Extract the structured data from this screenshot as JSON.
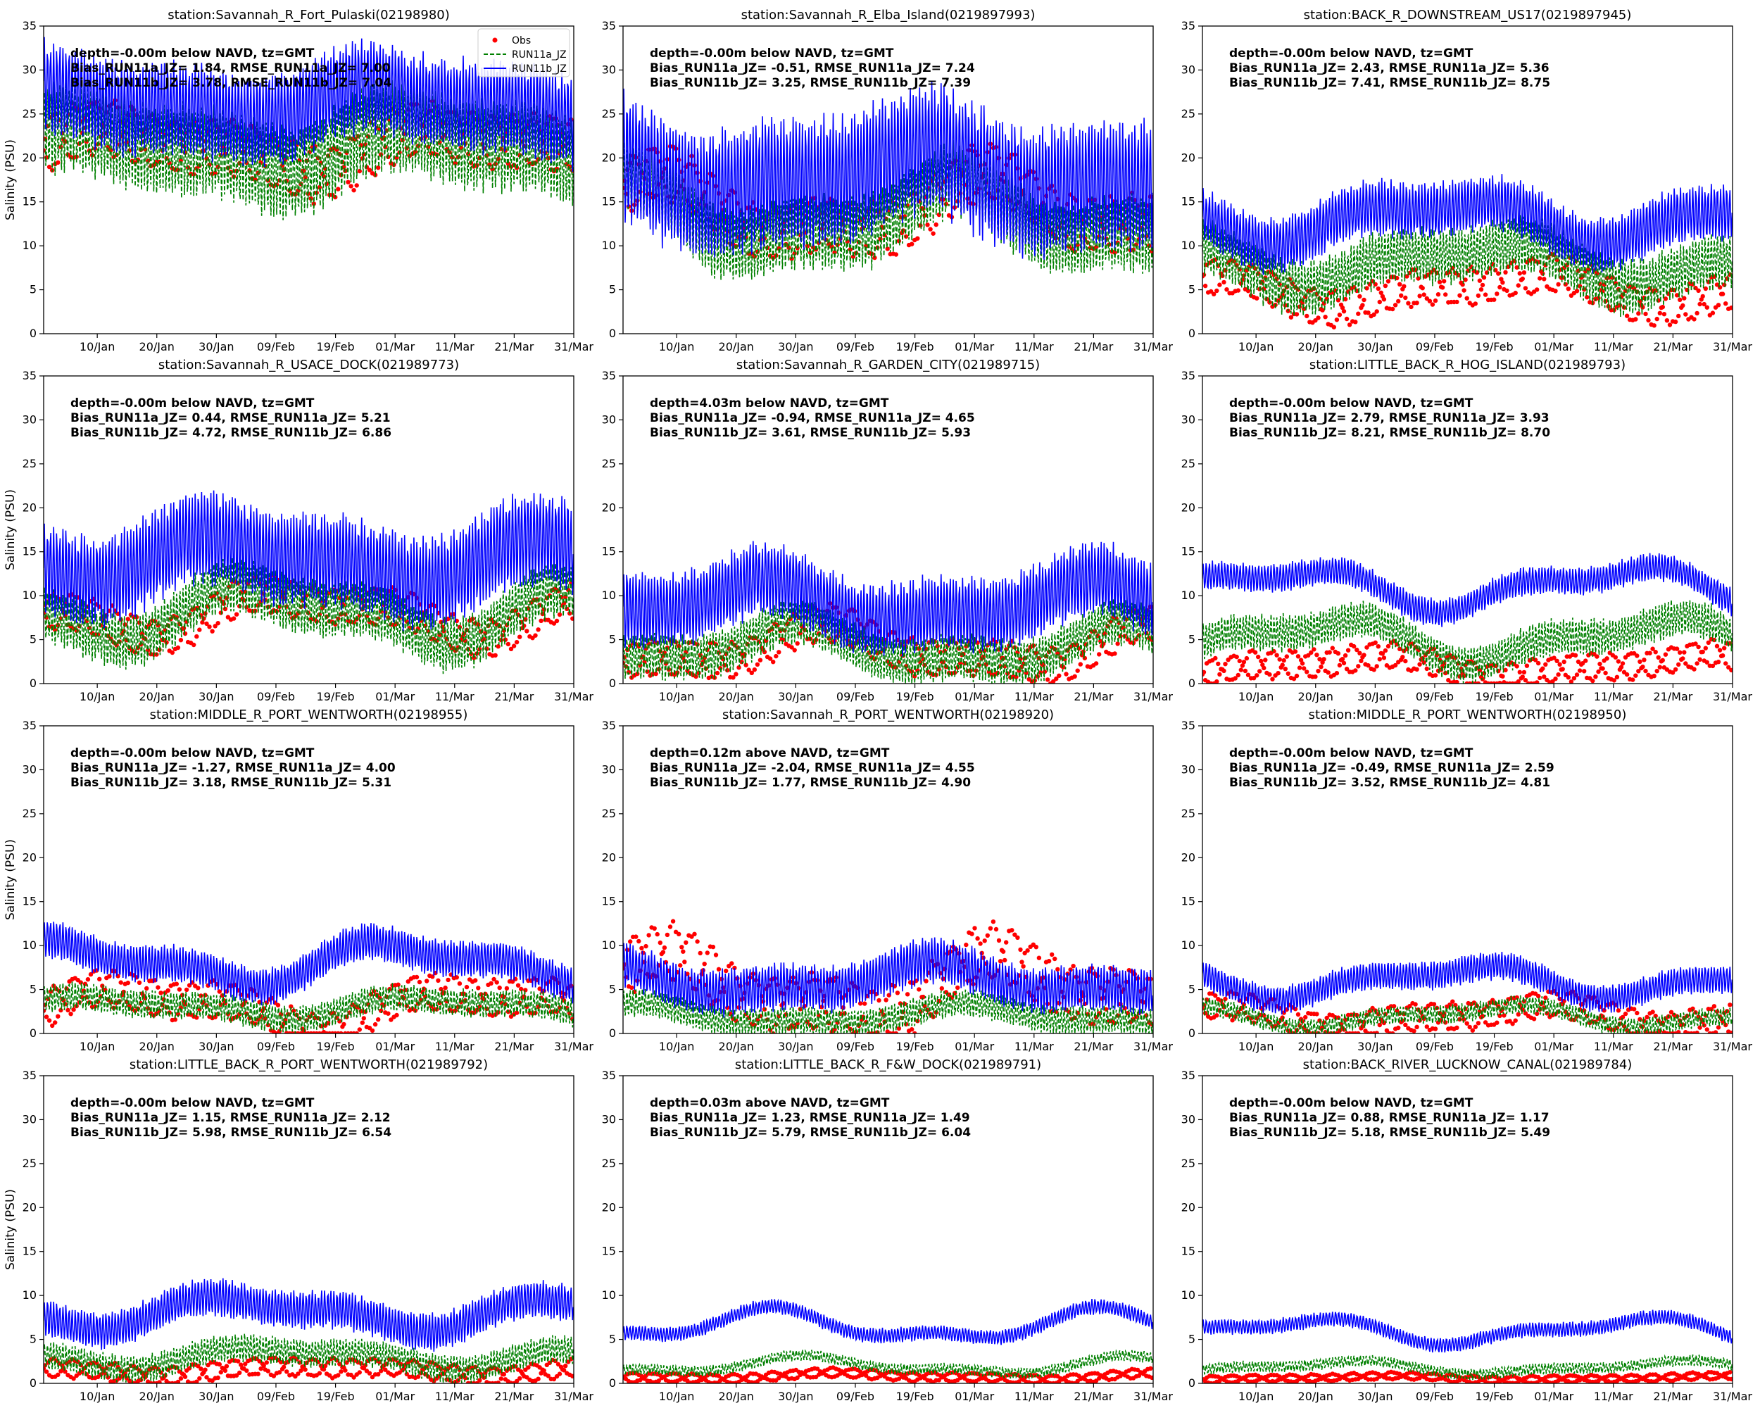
{
  "figure": {
    "ylabel": "Salinity (PSU)",
    "legend": {
      "placement": "top-right of first panel",
      "entries": [
        "Obs",
        "RUN11a_JZ",
        "RUN11b_JZ"
      ]
    },
    "colors": {
      "obs": "#ff0000",
      "run11a": "#008000",
      "run11b": "#0000ff"
    }
  },
  "chart_data": [
    {
      "type": "line",
      "title": "station:Savannah_R_Fort_Pulaski(02198980)",
      "ylabel": "Salinity (PSU)",
      "ylim": [
        0,
        35
      ],
      "yticks": [
        0,
        5,
        10,
        15,
        20,
        25,
        30,
        35
      ],
      "xticks": [
        "10/Jan",
        "20/Jan",
        "30/Jan",
        "09/Feb",
        "19/Feb",
        "01/Mar",
        "11/Mar",
        "21/Mar",
        "31/Mar"
      ],
      "annotation": [
        "depth=-0.00m below NAVD, tz=GMT",
        "Bias_RUN11a_JZ=  1.84, RMSE_RUN11a_JZ=  7.00",
        "Bias_RUN11b_JZ=  3.78, RMSE_RUN11b_JZ=  7.04"
      ],
      "series": [
        {
          "name": "Obs",
          "mean": 21,
          "amp": 3,
          "slow": 2
        },
        {
          "name": "RUN11a_JZ",
          "mean": 21,
          "amp": 5,
          "slow": 2
        },
        {
          "name": "RUN11b_JZ",
          "mean": 26,
          "amp": 5,
          "slow": 1.5
        }
      ]
    },
    {
      "type": "line",
      "title": "station:Savannah_R_Elba_Island(0219897993)",
      "ylabel": "",
      "ylim": [
        0,
        35
      ],
      "yticks": [
        0,
        5,
        10,
        15,
        20,
        25,
        30,
        35
      ],
      "xticks": [
        "10/Jan",
        "20/Jan",
        "30/Jan",
        "09/Feb",
        "19/Feb",
        "01/Mar",
        "11/Mar",
        "21/Mar",
        "31/Mar"
      ],
      "annotation": [
        "depth=-0.00m below NAVD, tz=GMT",
        "Bias_RUN11a_JZ= -0.51, RMSE_RUN11a_JZ=  7.24",
        "Bias_RUN11b_JZ=  3.25, RMSE_RUN11b_JZ=  7.39"
      ],
      "series": [
        {
          "name": "Obs",
          "mean": 14,
          "amp": 3,
          "slow": 3
        },
        {
          "name": "RUN11a_JZ",
          "mean": 13,
          "amp": 4,
          "slow": 3
        },
        {
          "name": "RUN11b_JZ",
          "mean": 18,
          "amp": 7,
          "slow": 2
        }
      ]
    },
    {
      "type": "line",
      "title": "station:BACK_R_DOWNSTREAM_US17(0219897945)",
      "ylabel": "",
      "ylim": [
        0,
        35
      ],
      "yticks": [
        0,
        5,
        10,
        15,
        20,
        25,
        30,
        35
      ],
      "xticks": [
        "10/Jan",
        "20/Jan",
        "30/Jan",
        "09/Feb",
        "19/Feb",
        "01/Mar",
        "11/Mar",
        "21/Mar",
        "31/Mar"
      ],
      "annotation": [
        "depth=-0.00m below NAVD, tz=GMT",
        "Bias_RUN11a_JZ=  2.43, RMSE_RUN11a_JZ=  5.36",
        "Bias_RUN11b_JZ=  7.41, RMSE_RUN11b_JZ=  8.75"
      ],
      "series": [
        {
          "name": "Obs",
          "mean": 5,
          "amp": 2,
          "slow": 1.5
        },
        {
          "name": "RUN11a_JZ",
          "mean": 8,
          "amp": 3,
          "slow": 2
        },
        {
          "name": "RUN11b_JZ",
          "mean": 13,
          "amp": 3,
          "slow": 2
        }
      ]
    },
    {
      "type": "line",
      "title": "station:Savannah_R_USACE_DOCK(021989773)",
      "ylabel": "Salinity (PSU)",
      "ylim": [
        0,
        35
      ],
      "yticks": [
        0,
        5,
        10,
        15,
        20,
        25,
        30,
        35
      ],
      "xticks": [
        "10/Jan",
        "20/Jan",
        "30/Jan",
        "09/Feb",
        "19/Feb",
        "01/Mar",
        "11/Mar",
        "21/Mar",
        "31/Mar"
      ],
      "annotation": [
        "depth=-0.00m below NAVD, tz=GMT",
        "Bias_RUN11a_JZ=  0.44, RMSE_RUN11a_JZ=  5.21",
        "Bias_RUN11b_JZ=  4.72, RMSE_RUN11b_JZ=  6.86"
      ],
      "series": [
        {
          "name": "Obs",
          "mean": 8,
          "amp": 2,
          "slow": 2
        },
        {
          "name": "RUN11a_JZ",
          "mean": 8,
          "amp": 3,
          "slow": 2.5
        },
        {
          "name": "RUN11b_JZ",
          "mean": 14,
          "amp": 5,
          "slow": 2
        }
      ]
    },
    {
      "type": "line",
      "title": "station:Savannah_R_GARDEN_CITY(021989715)",
      "ylabel": "",
      "ylim": [
        0,
        35
      ],
      "yticks": [
        0,
        5,
        10,
        15,
        20,
        25,
        30,
        35
      ],
      "xticks": [
        "10/Jan",
        "20/Jan",
        "30/Jan",
        "09/Feb",
        "19/Feb",
        "01/Mar",
        "11/Mar",
        "21/Mar",
        "31/Mar"
      ],
      "annotation": [
        "depth=4.03m below NAVD, tz=GMT",
        "Bias_RUN11a_JZ= -0.94, RMSE_RUN11a_JZ=  4.65",
        "Bias_RUN11b_JZ=  3.61, RMSE_RUN11b_JZ=  5.93"
      ],
      "series": [
        {
          "name": "Obs",
          "mean": 4,
          "amp": 2,
          "slow": 2
        },
        {
          "name": "RUN11a_JZ",
          "mean": 4,
          "amp": 2.5,
          "slow": 2
        },
        {
          "name": "RUN11b_JZ",
          "mean": 9,
          "amp": 4,
          "slow": 2
        }
      ]
    },
    {
      "type": "line",
      "title": "station:LITTLE_BACK_R_HOG_ISLAND(021989793)",
      "ylabel": "",
      "ylim": [
        0,
        35
      ],
      "yticks": [
        0,
        5,
        10,
        15,
        20,
        25,
        30,
        35
      ],
      "xticks": [
        "10/Jan",
        "20/Jan",
        "30/Jan",
        "09/Feb",
        "19/Feb",
        "01/Mar",
        "11/Mar",
        "21/Mar",
        "31/Mar"
      ],
      "annotation": [
        "depth=-0.00m below NAVD, tz=GMT",
        "Bias_RUN11a_JZ=  2.79, RMSE_RUN11a_JZ=  3.93",
        "Bias_RUN11b_JZ=  8.21, RMSE_RUN11b_JZ=  8.70"
      ],
      "series": [
        {
          "name": "Obs",
          "mean": 2,
          "amp": 1.5,
          "slow": 1
        },
        {
          "name": "RUN11a_JZ",
          "mean": 5,
          "amp": 2,
          "slow": 2
        },
        {
          "name": "RUN11b_JZ",
          "mean": 11,
          "amp": 1.5,
          "slow": 2
        }
      ]
    },
    {
      "type": "line",
      "title": "station:MIDDLE_R_PORT_WENTWORTH(02198955)",
      "ylabel": "Salinity (PSU)",
      "ylim": [
        0,
        35
      ],
      "yticks": [
        0,
        5,
        10,
        15,
        20,
        25,
        30,
        35
      ],
      "xticks": [
        "10/Jan",
        "20/Jan",
        "30/Jan",
        "09/Feb",
        "19/Feb",
        "01/Mar",
        "11/Mar",
        "21/Mar",
        "31/Mar"
      ],
      "annotation": [
        "depth=-0.00m below NAVD, tz=GMT",
        "Bias_RUN11a_JZ= -1.27, RMSE_RUN11a_JZ=  4.00",
        "Bias_RUN11b_JZ=  3.18, RMSE_RUN11b_JZ=  5.31"
      ],
      "series": [
        {
          "name": "Obs",
          "mean": 3,
          "amp": 2,
          "slow": 2
        },
        {
          "name": "RUN11a_JZ",
          "mean": 3,
          "amp": 1.5,
          "slow": 1
        },
        {
          "name": "RUN11b_JZ",
          "mean": 8,
          "amp": 2,
          "slow": 2
        }
      ]
    },
    {
      "type": "line",
      "title": "station:Savannah_R_PORT_WENTWORTH(02198920)",
      "ylabel": "",
      "ylim": [
        0,
        35
      ],
      "yticks": [
        0,
        5,
        10,
        15,
        20,
        25,
        30,
        35
      ],
      "xticks": [
        "10/Jan",
        "20/Jan",
        "30/Jan",
        "09/Feb",
        "19/Feb",
        "01/Mar",
        "11/Mar",
        "21/Mar",
        "31/Mar"
      ],
      "annotation": [
        "depth=0.12m above NAVD, tz=GMT",
        "Bias_RUN11a_JZ= -2.04, RMSE_RUN11a_JZ=  4.55",
        "Bias_RUN11b_JZ=  1.77, RMSE_RUN11b_JZ=  4.90"
      ],
      "series": [
        {
          "name": "Obs",
          "mean": 5,
          "amp": 3,
          "slow": 3
        },
        {
          "name": "RUN11a_JZ",
          "mean": 2,
          "amp": 1.5,
          "slow": 1
        },
        {
          "name": "RUN11b_JZ",
          "mean": 6,
          "amp": 2.5,
          "slow": 1.5
        }
      ]
    },
    {
      "type": "line",
      "title": "station:MIDDLE_R_PORT_WENTWORTH(02198950)",
      "ylabel": "",
      "ylim": [
        0,
        35
      ],
      "yticks": [
        0,
        5,
        10,
        15,
        20,
        25,
        30,
        35
      ],
      "xticks": [
        "10/Jan",
        "20/Jan",
        "30/Jan",
        "09/Feb",
        "19/Feb",
        "01/Mar",
        "11/Mar",
        "21/Mar",
        "31/Mar"
      ],
      "annotation": [
        "depth=-0.00m below NAVD, tz=GMT",
        "Bias_RUN11a_JZ= -0.49, RMSE_RUN11a_JZ=  2.59",
        "Bias_RUN11b_JZ=  3.52, RMSE_RUN11b_JZ=  4.81"
      ],
      "series": [
        {
          "name": "Obs",
          "mean": 2,
          "amp": 1.5,
          "slow": 1
        },
        {
          "name": "RUN11a_JZ",
          "mean": 2,
          "amp": 1,
          "slow": 1
        },
        {
          "name": "RUN11b_JZ",
          "mean": 6,
          "amp": 1.5,
          "slow": 1.5
        }
      ]
    },
    {
      "type": "line",
      "title": "station:LITTLE_BACK_R_PORT_WENTWORTH(021989792)",
      "ylabel": "Salinity (PSU)",
      "ylim": [
        0,
        35
      ],
      "yticks": [
        0,
        5,
        10,
        15,
        20,
        25,
        30,
        35
      ],
      "xticks": [
        "10/Jan",
        "20/Jan",
        "30/Jan",
        "09/Feb",
        "19/Feb",
        "01/Mar",
        "11/Mar",
        "21/Mar",
        "31/Mar"
      ],
      "annotation": [
        "depth=-0.00m below NAVD, tz=GMT",
        "Bias_RUN11a_JZ=  1.15, RMSE_RUN11a_JZ=  2.12",
        "Bias_RUN11b_JZ=  5.98, RMSE_RUN11b_JZ=  6.54"
      ],
      "series": [
        {
          "name": "Obs",
          "mean": 1.5,
          "amp": 1,
          "slow": 0.5
        },
        {
          "name": "RUN11a_JZ",
          "mean": 3,
          "amp": 1.5,
          "slow": 1
        },
        {
          "name": "RUN11b_JZ",
          "mean": 8,
          "amp": 2,
          "slow": 1.5
        }
      ]
    },
    {
      "type": "line",
      "title": "station:LITTLE_BACK_R_F&W_DOCK(021989791)",
      "ylabel": "",
      "ylim": [
        0,
        35
      ],
      "yticks": [
        0,
        5,
        10,
        15,
        20,
        25,
        30,
        35
      ],
      "xticks": [
        "10/Jan",
        "20/Jan",
        "30/Jan",
        "09/Feb",
        "19/Feb",
        "01/Mar",
        "11/Mar",
        "21/Mar",
        "31/Mar"
      ],
      "annotation": [
        "depth=0.03m above NAVD, tz=GMT",
        "Bias_RUN11a_JZ=  1.23, RMSE_RUN11a_JZ=  1.49",
        "Bias_RUN11b_JZ=  5.79, RMSE_RUN11b_JZ=  6.04"
      ],
      "series": [
        {
          "name": "Obs",
          "mean": 0.8,
          "amp": 0.5,
          "slow": 0.3
        },
        {
          "name": "RUN11a_JZ",
          "mean": 2,
          "amp": 0.6,
          "slow": 0.8
        },
        {
          "name": "RUN11b_JZ",
          "mean": 6.5,
          "amp": 0.8,
          "slow": 1.5
        }
      ]
    },
    {
      "type": "line",
      "title": "station:BACK_RIVER_LUCKNOW_CANAL(021989784)",
      "ylabel": "",
      "ylim": [
        0,
        35
      ],
      "yticks": [
        0,
        5,
        10,
        15,
        20,
        25,
        30,
        35
      ],
      "xticks": [
        "10/Jan",
        "20/Jan",
        "30/Jan",
        "09/Feb",
        "19/Feb",
        "01/Mar",
        "11/Mar",
        "21/Mar",
        "31/Mar"
      ],
      "annotation": [
        "depth=-0.00m below NAVD, tz=GMT",
        "Bias_RUN11a_JZ=  0.88, RMSE_RUN11a_JZ=  1.17",
        "Bias_RUN11b_JZ=  5.18, RMSE_RUN11b_JZ=  5.49"
      ],
      "series": [
        {
          "name": "Obs",
          "mean": 0.6,
          "amp": 0.4,
          "slow": 0.2
        },
        {
          "name": "RUN11a_JZ",
          "mean": 1.8,
          "amp": 0.6,
          "slow": 0.6
        },
        {
          "name": "RUN11b_JZ",
          "mean": 6,
          "amp": 0.8,
          "slow": 1.2
        }
      ]
    }
  ]
}
